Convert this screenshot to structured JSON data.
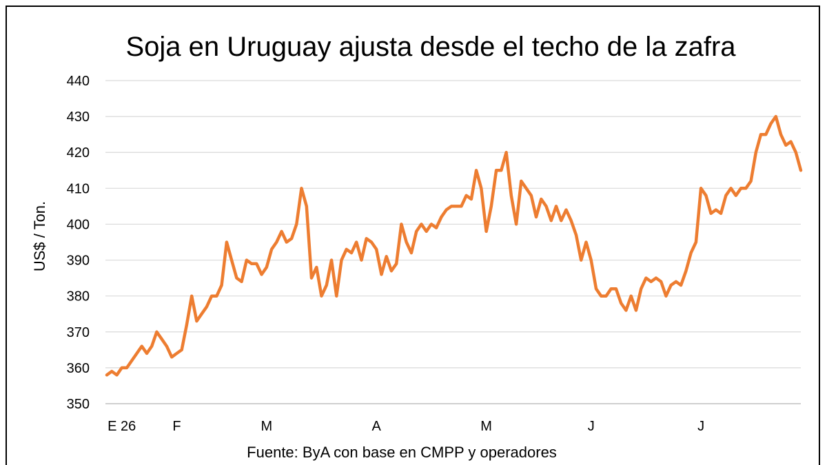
{
  "chart_data": {
    "type": "line",
    "title": "Soja en Uruguay ajusta desde el techo de la zafra",
    "ylabel": "US$ / Ton.",
    "xlabel": "",
    "source": "Fuente: ByA con base en CMPP y operadores",
    "ylim": [
      350,
      440
    ],
    "yticks": [
      350,
      360,
      370,
      380,
      390,
      400,
      410,
      420,
      430,
      440
    ],
    "xtick_labels": [
      "E 26",
      "F",
      "M",
      "A",
      "M",
      "J",
      "J"
    ],
    "xtick_index": [
      3,
      14,
      32,
      54,
      76,
      97,
      119
    ],
    "grid": true,
    "line_color": "#ED7D31",
    "grid_color": "#D9D9D9",
    "series": [
      {
        "values": [
          358,
          359,
          358,
          360,
          360,
          362,
          364,
          366,
          364,
          366,
          370,
          368,
          366,
          363,
          364,
          365,
          372,
          380,
          373,
          375,
          377,
          380,
          380,
          383,
          395,
          390,
          385,
          384,
          390,
          389,
          389,
          386,
          388,
          393,
          395,
          398,
          395,
          396,
          400,
          410,
          405,
          385,
          388,
          380,
          383,
          390,
          380,
          390,
          393,
          392,
          395,
          390,
          396,
          395,
          393,
          386,
          391,
          387,
          389,
          400,
          395,
          392,
          398,
          400,
          398,
          400,
          399,
          402,
          404,
          405,
          405,
          405,
          408,
          407,
          415,
          410,
          398,
          405,
          415,
          415,
          420,
          408,
          400,
          412,
          410,
          408,
          402,
          407,
          405,
          401,
          405,
          401,
          404,
          401,
          397,
          390,
          395,
          390,
          382,
          380,
          380,
          382,
          382,
          378,
          376,
          380,
          376,
          382,
          385,
          384,
          385,
          384,
          380,
          383,
          384,
          383,
          387,
          392,
          395,
          410,
          408,
          403,
          404,
          403,
          408,
          410,
          408,
          410,
          410,
          412,
          420,
          425,
          425,
          428,
          430,
          425,
          422,
          423,
          420,
          415
        ]
      }
    ]
  }
}
